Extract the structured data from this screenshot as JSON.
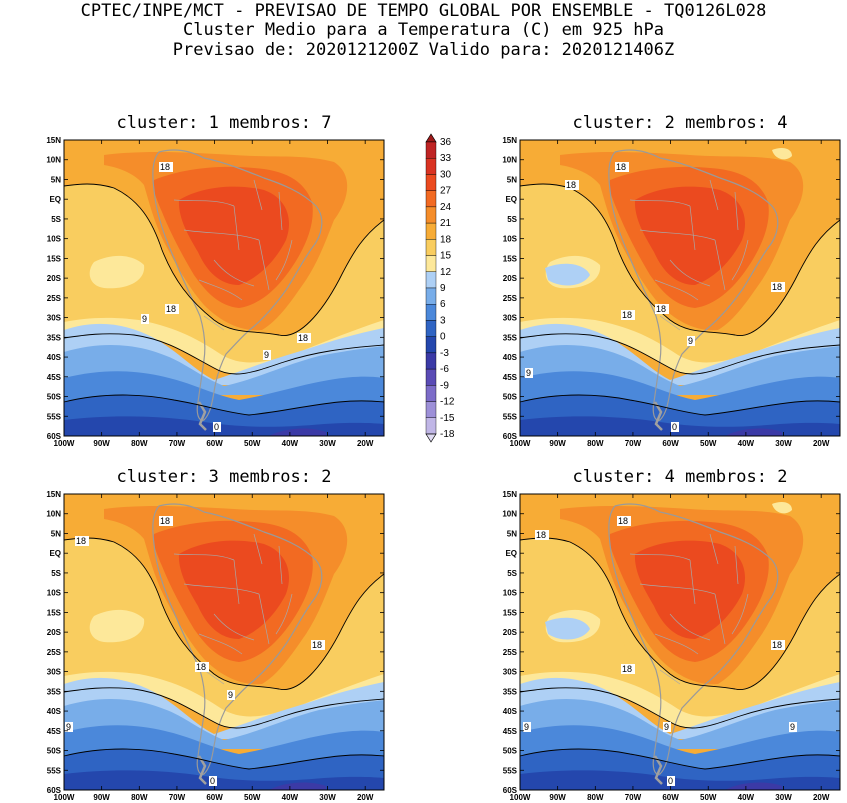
{
  "header": {
    "line1": "CPTEC/INPE/MCT - PREVISAO DE TEMPO GLOBAL POR ENSEMBLE - TQ0126L028",
    "line2": "Cluster Medio para a Temperatura (C) em 925 hPa",
    "line3": "Previsao de: 2020121200Z   Valido para: 2020121406Z"
  },
  "panels": [
    {
      "id": 1,
      "title": "cluster: 1   membros: 7",
      "contour_labels": [
        "18",
        "18",
        "18",
        "9",
        "9",
        "0"
      ]
    },
    {
      "id": 2,
      "title": "cluster: 2   membros: 4",
      "contour_labels": [
        "18",
        "18",
        "18",
        "18",
        "18",
        "9",
        "9",
        "0"
      ]
    },
    {
      "id": 3,
      "title": "cluster: 3   membros: 2",
      "contour_labels": [
        "18",
        "18",
        "18",
        "18",
        "9",
        "9",
        "0"
      ]
    },
    {
      "id": 4,
      "title": "cluster: 4   membros: 2",
      "contour_labels": [
        "18",
        "18",
        "18",
        "18",
        "9",
        "9",
        "9",
        "0"
      ]
    }
  ],
  "axes": {
    "lat_labels": [
      "15N",
      "10N",
      "5N",
      "EQ",
      "5S",
      "10S",
      "15S",
      "20S",
      "25S",
      "30S",
      "35S",
      "40S",
      "45S",
      "50S",
      "55S",
      "60S"
    ],
    "lon_labels": [
      "100W",
      "90W",
      "80W",
      "70W",
      "60W",
      "50W",
      "40W",
      "30W",
      "20W"
    ],
    "lat_range": [
      -60,
      15
    ],
    "lon_range": [
      -100,
      -15
    ]
  },
  "colorbar": {
    "labels": [
      "36",
      "33",
      "30",
      "27",
      "24",
      "21",
      "18",
      "15",
      "12",
      "9",
      "6",
      "3",
      "0",
      "-3",
      "-6",
      "-9",
      "-12",
      "-15",
      "-18"
    ],
    "colors": [
      "#9e1a1a",
      "#bf2424",
      "#d93322",
      "#eb4a1f",
      "#f26a22",
      "#f58d2a",
      "#f7ac36",
      "#f9cd5f",
      "#fde89a",
      "#aed0f5",
      "#78ade9",
      "#4b88da",
      "#2f64c3",
      "#2447ad",
      "#3b3aa6",
      "#5a4bb5",
      "#7c6cc8",
      "#9d90d8",
      "#c0b6e6",
      "#e0dcf3"
    ]
  }
}
